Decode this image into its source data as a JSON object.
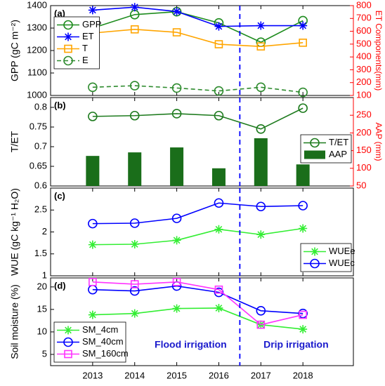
{
  "chart_data": [
    {
      "type": "line",
      "label": "(a)",
      "ylabel": "GPP (gC m⁻²)",
      "y2label": "ET Components(mm)",
      "y2color": "#ff0000",
      "x": [
        2013,
        2014,
        2015,
        2016,
        2017,
        2018
      ],
      "xlim": [
        2012,
        2019.2
      ],
      "xticks": [
        2013,
        2014,
        2015,
        2016,
        2017,
        2018
      ],
      "ylim": [
        1000,
        1400
      ],
      "yticks": [
        1000,
        1100,
        1200,
        1300,
        1400
      ],
      "y2lim": [
        100,
        800
      ],
      "y2ticks": [
        100,
        200,
        300,
        400,
        500,
        600,
        700,
        800
      ],
      "vline": 2016.5,
      "vline_color": "#0000ff",
      "legend": "upper left",
      "series": [
        {
          "name": "GPP",
          "color": "#1e8c1e",
          "marker": "o",
          "values": [
            1300,
            1360,
            1373,
            1323,
            1237,
            1333
          ]
        },
        {
          "name": "ET",
          "color": "#0000ff",
          "marker": "*",
          "axis": "y2",
          "values": [
            765,
            788,
            754,
            638,
            644,
            644
          ]
        },
        {
          "name": "T",
          "color": "#ffa500",
          "marker": "s",
          "axis": "y2",
          "values": [
            586,
            615,
            592,
            499,
            482,
            511
          ]
        },
        {
          "name": "E",
          "color": "#2e8b2e",
          "marker": "o",
          "linestyle": "dashed",
          "axis": "y2",
          "values": [
            164,
            176,
            158,
            135,
            164,
            124
          ]
        }
      ]
    },
    {
      "type": "line",
      "label": "(b)",
      "ylabel": "T/ET",
      "y2label": "AAP (mm)",
      "y2color": "#ff0000",
      "x": [
        2013,
        2014,
        2015,
        2016,
        2017,
        2018
      ],
      "xlim": [
        2012,
        2019.2
      ],
      "xticks": [
        2013,
        2014,
        2015,
        2016,
        2017,
        2018
      ],
      "ylim": [
        0.6,
        0.825
      ],
      "yticks": [
        0.6,
        0.65,
        0.7,
        0.75,
        0.8
      ],
      "y2lim": [
        50,
        300
      ],
      "y2ticks": [
        50,
        100,
        150,
        200,
        250
      ],
      "vline": 2016.5,
      "vline_color": "#0000ff",
      "legend": "center right",
      "series": [
        {
          "name": "T/ET",
          "color": "#1e7b1e",
          "marker": "o",
          "values": [
            0.777,
            0.779,
            0.784,
            0.779,
            0.745,
            0.798
          ]
        },
        {
          "name": "AAP",
          "color": "#1a6e1a",
          "type": "bar",
          "axis": "y2",
          "values": [
            135,
            145,
            159,
            100,
            185,
            111
          ]
        }
      ]
    },
    {
      "type": "line",
      "label": "(c)",
      "ylabel": "WUE (gC kg⁻¹ H₂O)",
      "x": [
        2013,
        2014,
        2015,
        2016,
        2017,
        2018
      ],
      "xlim": [
        2012,
        2019.2
      ],
      "xticks": [
        2013,
        2014,
        2015,
        2016,
        2017,
        2018
      ],
      "ylim": [
        1,
        3
      ],
      "yticks": [
        1,
        1.5,
        2,
        2.5
      ],
      "vline": 2016.5,
      "vline_color": "#0000ff",
      "legend": "lower right",
      "series": [
        {
          "name": "WUEe",
          "color": "#33ee33",
          "marker": "*",
          "values": [
            1.71,
            1.72,
            1.81,
            2.06,
            1.94,
            2.08
          ]
        },
        {
          "name": "WUEc",
          "color": "#0000ff",
          "marker": "o",
          "values": [
            2.19,
            2.2,
            2.31,
            2.66,
            2.58,
            2.6
          ]
        }
      ]
    },
    {
      "type": "line",
      "label": "(d)",
      "ylabel": "Soil moisture (%)",
      "x": [
        2013,
        2014,
        2015,
        2016,
        2017,
        2018
      ],
      "xlim": [
        2012,
        2019.2
      ],
      "xticks": [
        2013,
        2014,
        2015,
        2016,
        2017,
        2018
      ],
      "ylim": [
        2.5,
        22
      ],
      "yticks": [
        5,
        10,
        15,
        20
      ],
      "vline": 2016.5,
      "vline_color": "#0000ff",
      "legend": "lower left",
      "annotations": [
        "Flood irrigation",
        "Drip irrigation"
      ],
      "annotation_color": "#1a1acc",
      "series": [
        {
          "name": "SM_4cm",
          "color": "#33ee33",
          "marker": "*",
          "values": [
            13.8,
            14.1,
            15.2,
            15.3,
            11.6,
            10.6
          ]
        },
        {
          "name": "SM_40cm",
          "color": "#0000ff",
          "marker": "o",
          "values": [
            19.4,
            19.1,
            20.2,
            18.8,
            14.7,
            14.1
          ]
        },
        {
          "name": "SM_160cm",
          "color": "#ff33ff",
          "marker": "s",
          "values": [
            21.1,
            20.6,
            21.1,
            19.4,
            11.6,
            13.8
          ]
        }
      ]
    }
  ]
}
